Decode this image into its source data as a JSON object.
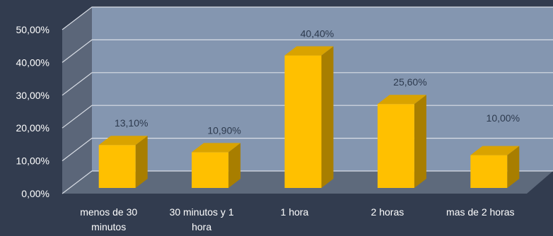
{
  "chart_data": {
    "type": "bar",
    "three_d": true,
    "categories": [
      [
        "menos de 30",
        "minutos"
      ],
      [
        "30 minutos y 1",
        "hora"
      ],
      [
        "1 hora"
      ],
      [
        "2 horas"
      ],
      [
        "mas de 2 horas"
      ]
    ],
    "values": [
      13.1,
      10.9,
      40.4,
      25.6,
      10.0
    ],
    "data_labels": [
      "13,10%",
      "10,90%",
      "40,40%",
      "25,60%",
      "10,00%"
    ],
    "yticks": [
      "0,00%",
      "10,00%",
      "20,00%",
      "30,00%",
      "40,00%",
      "50,00%"
    ],
    "ylim": [
      0,
      50
    ],
    "grid": true,
    "colors": {
      "background": "#323c4f",
      "back_wall": "#8496b0",
      "side_wall": "#5b6679",
      "floor": "#5e6a7c",
      "bar_front": "#ffc000",
      "bar_top": "#d9a300",
      "bar_side": "#a87e00",
      "gridline": "#d9dee6"
    }
  }
}
